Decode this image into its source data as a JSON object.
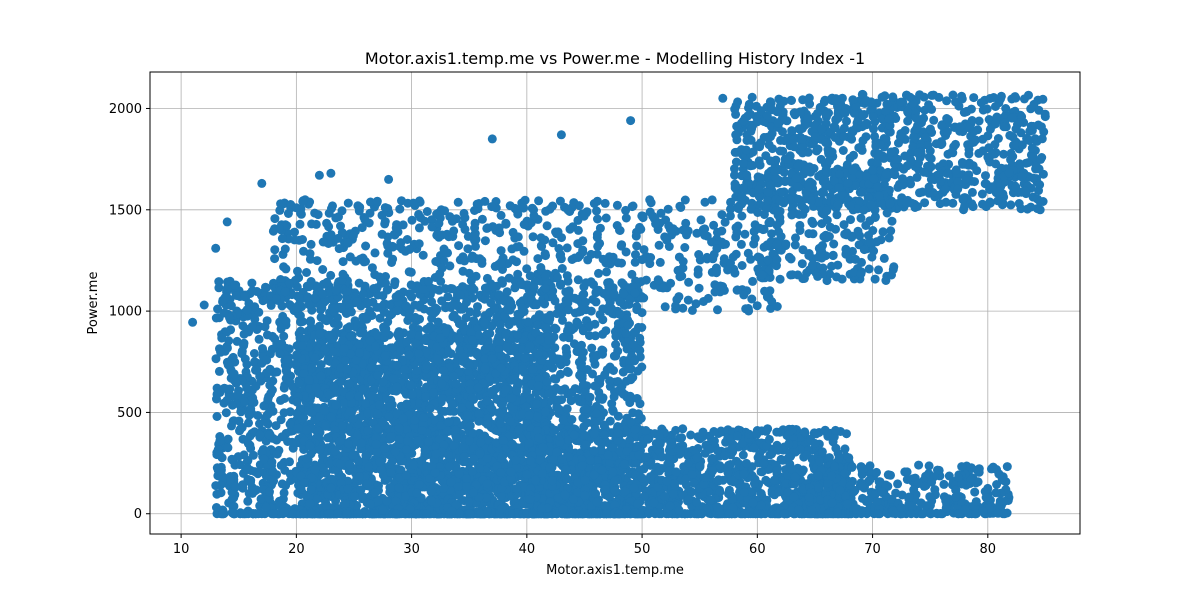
{
  "chart_data": {
    "type": "scatter",
    "title": "Motor.axis1.temp.me vs Power.me - Modelling History Index -1",
    "xlabel": "Motor.axis1.temp.me",
    "ylabel": "Power.me",
    "xlim": [
      7.3,
      88.0
    ],
    "ylim": [
      -100,
      2180
    ],
    "xticks": [
      10,
      20,
      30,
      40,
      50,
      60,
      70,
      80
    ],
    "yticks": [
      0,
      500,
      1000,
      1500,
      2000
    ],
    "grid": true,
    "legend": "none",
    "color": "#1f77b4",
    "clusters": [
      {
        "x": [
          13,
          50
        ],
        "y": [
          0,
          1150
        ],
        "count": 2600
      },
      {
        "x": [
          20,
          42
        ],
        "y": [
          0,
          900
        ],
        "count": 1800
      },
      {
        "x": [
          40,
          68
        ],
        "y": [
          0,
          420
        ],
        "count": 1400
      },
      {
        "x": [
          62,
          82
        ],
        "y": [
          0,
          240
        ],
        "count": 400
      },
      {
        "x": [
          18,
          62
        ],
        "y": [
          1000,
          1550
        ],
        "count": 700
      },
      {
        "x": [
          58,
          85
        ],
        "y": [
          1500,
          2070
        ],
        "count": 900
      },
      {
        "x": [
          60,
          72
        ],
        "y": [
          1150,
          1700
        ],
        "count": 250
      }
    ],
    "highlight_points": [
      {
        "x": 11,
        "y": 945
      },
      {
        "x": 12,
        "y": 1030
      },
      {
        "x": 13,
        "y": 1310
      },
      {
        "x": 14,
        "y": 1440
      },
      {
        "x": 17,
        "y": 1630
      },
      {
        "x": 20,
        "y": 1510
      },
      {
        "x": 22,
        "y": 1670
      },
      {
        "x": 23,
        "y": 1680
      },
      {
        "x": 28,
        "y": 1650
      },
      {
        "x": 37,
        "y": 1850
      },
      {
        "x": 43,
        "y": 1870
      },
      {
        "x": 49,
        "y": 1940
      },
      {
        "x": 57,
        "y": 2050
      },
      {
        "x": 69,
        "y": 1185
      },
      {
        "x": 80,
        "y": 125
      },
      {
        "x": 79,
        "y": 60
      },
      {
        "x": 84,
        "y": 2020
      },
      {
        "x": 83,
        "y": 1820
      },
      {
        "x": 18,
        "y": 0
      },
      {
        "x": 48,
        "y": 0
      }
    ]
  }
}
